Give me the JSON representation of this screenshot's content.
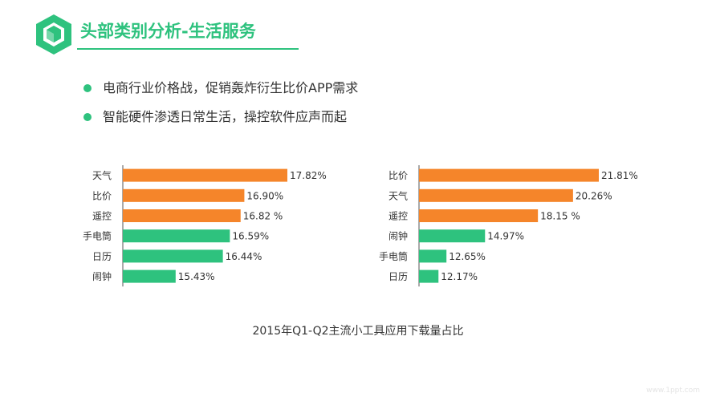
{
  "header": {
    "title": "头部类别分析-生活服务",
    "logo_icon": "hexagon-cube-icon"
  },
  "bullets": [
    "电商行业价格战，促销轰炸衍生比价APP需求",
    "智能硬件渗透日常生活，操控软件应声而起"
  ],
  "colors": {
    "accent": "#2ec27e",
    "orange": "#f5852a",
    "green": "#2ec27e",
    "text": "#333333",
    "axis": "#555555"
  },
  "chart_caption": "2015年Q1-Q2主流小工具应用下载量占比",
  "chart_data": [
    {
      "type": "bar",
      "orientation": "horizontal",
      "categories": [
        "天气",
        "比价",
        "遥控",
        "手电筒",
        "日历",
        "闹钟"
      ],
      "values": [
        17.82,
        16.9,
        16.82,
        16.59,
        16.44,
        15.43
      ],
      "labels": [
        "17.82%",
        "16.90%",
        "16.82 %",
        "16.59%",
        "16.44%",
        "15.43%"
      ],
      "colors": [
        "#f5852a",
        "#f5852a",
        "#f5852a",
        "#2ec27e",
        "#2ec27e",
        "#2ec27e"
      ],
      "axis_min": 14.3,
      "axis_max": 17.82
    },
    {
      "type": "bar",
      "orientation": "horizontal",
      "categories": [
        "比价",
        "天气",
        "遥控",
        "闹钟",
        "手电筒",
        "日历"
      ],
      "values": [
        21.81,
        20.26,
        18.15,
        14.97,
        12.65,
        12.17
      ],
      "labels": [
        "21.81%",
        "20.26%",
        "18.15 %",
        "14.97%",
        "12.65%",
        "12.17%"
      ],
      "colors": [
        "#f5852a",
        "#f5852a",
        "#f5852a",
        "#2ec27e",
        "#2ec27e",
        "#2ec27e"
      ],
      "axis_min": 11.0,
      "axis_max": 21.81
    }
  ],
  "footnote": "www.1ppt.com"
}
